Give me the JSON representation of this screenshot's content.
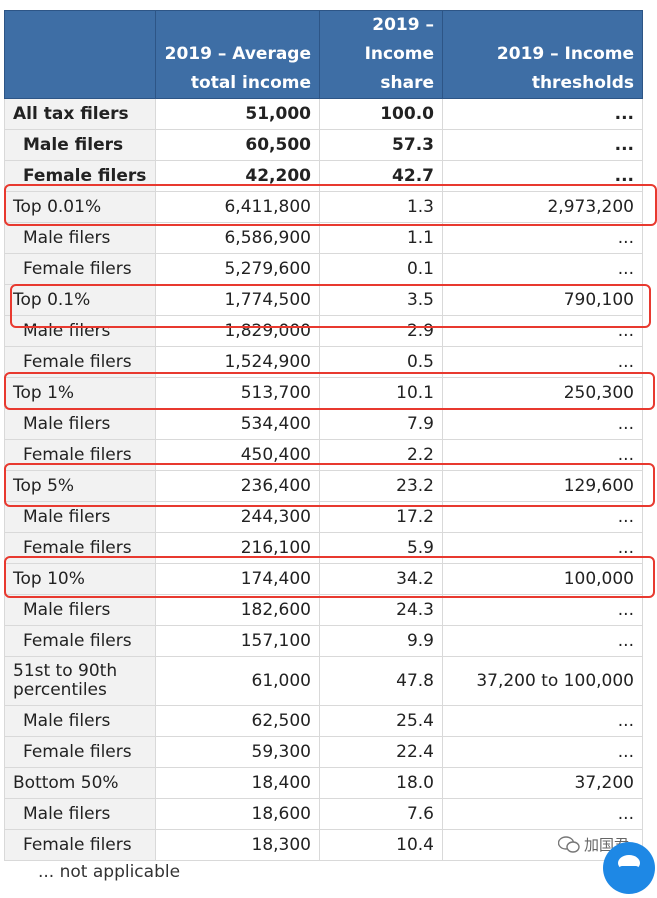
{
  "table": {
    "headers": [
      "",
      "2019 – Average total income",
      "2019 – Income share",
      "2019 – Income thresholds"
    ],
    "rows": [
      {
        "label": "All tax filers",
        "avg": "51,000",
        "share": "100.0",
        "thr": "...",
        "style": "bold"
      },
      {
        "label": "Male filers",
        "avg": "60,500",
        "share": "57.3",
        "thr": "...",
        "style": "bold-sub"
      },
      {
        "label": "Female filers",
        "avg": "42,200",
        "share": "42.7",
        "thr": "...",
        "style": "bold-sub"
      },
      {
        "label": "Top 0.01%",
        "avg": "6,411,800",
        "share": "1.3",
        "thr": "2,973,200",
        "style": "group"
      },
      {
        "label": "Male filers",
        "avg": "6,586,900",
        "share": "1.1",
        "thr": "...",
        "style": "sub"
      },
      {
        "label": "Female filers",
        "avg": "5,279,600",
        "share": "0.1",
        "thr": "...",
        "style": "sub"
      },
      {
        "label": "Top 0.1%",
        "avg": "1,774,500",
        "share": "3.5",
        "thr": "790,100",
        "style": "group"
      },
      {
        "label": "Male filers",
        "avg": "1,829,000",
        "share": "2.9",
        "thr": "...",
        "style": "sub"
      },
      {
        "label": "Female filers",
        "avg": "1,524,900",
        "share": "0.5",
        "thr": "...",
        "style": "sub"
      },
      {
        "label": "Top 1%",
        "avg": "513,700",
        "share": "10.1",
        "thr": "250,300",
        "style": "group"
      },
      {
        "label": "Male filers",
        "avg": "534,400",
        "share": "7.9",
        "thr": "...",
        "style": "sub"
      },
      {
        "label": "Female filers",
        "avg": "450,400",
        "share": "2.2",
        "thr": "...",
        "style": "sub"
      },
      {
        "label": "Top 5%",
        "avg": "236,400",
        "share": "23.2",
        "thr": "129,600",
        "style": "group"
      },
      {
        "label": "Male filers",
        "avg": "244,300",
        "share": "17.2",
        "thr": "...",
        "style": "sub"
      },
      {
        "label": "Female filers",
        "avg": "216,100",
        "share": "5.9",
        "thr": "...",
        "style": "sub"
      },
      {
        "label": "Top 10%",
        "avg": "174,400",
        "share": "34.2",
        "thr": "100,000",
        "style": "group"
      },
      {
        "label": "Male filers",
        "avg": "182,600",
        "share": "24.3",
        "thr": "...",
        "style": "sub"
      },
      {
        "label": "Female filers",
        "avg": "157,100",
        "share": "9.9",
        "thr": "...",
        "style": "sub"
      },
      {
        "label": "51st to 90th percentiles",
        "avg": "61,000",
        "share": "47.8",
        "thr": "37,200 to 100,000",
        "style": "group-tall"
      },
      {
        "label": "Male filers",
        "avg": "62,500",
        "share": "25.4",
        "thr": "...",
        "style": "sub"
      },
      {
        "label": "Female filers",
        "avg": "59,300",
        "share": "22.4",
        "thr": "...",
        "style": "sub"
      },
      {
        "label": "Bottom 50%",
        "avg": "18,400",
        "share": "18.0",
        "thr": "37,200",
        "style": "group"
      },
      {
        "label": "Male filers",
        "avg": "18,600",
        "share": "7.6",
        "thr": "...",
        "style": "sub"
      },
      {
        "label": "Female filers",
        "avg": "18,300",
        "share": "10.4",
        "thr": "...",
        "style": "sub"
      }
    ]
  },
  "footnote": "... not applicable",
  "watermark": "加国君",
  "highlight_color": "#e8392f",
  "header_color": "#3e6ea5",
  "icons": {
    "watermark": "wechat-icon",
    "chat": "chat-bubble-icon"
  }
}
